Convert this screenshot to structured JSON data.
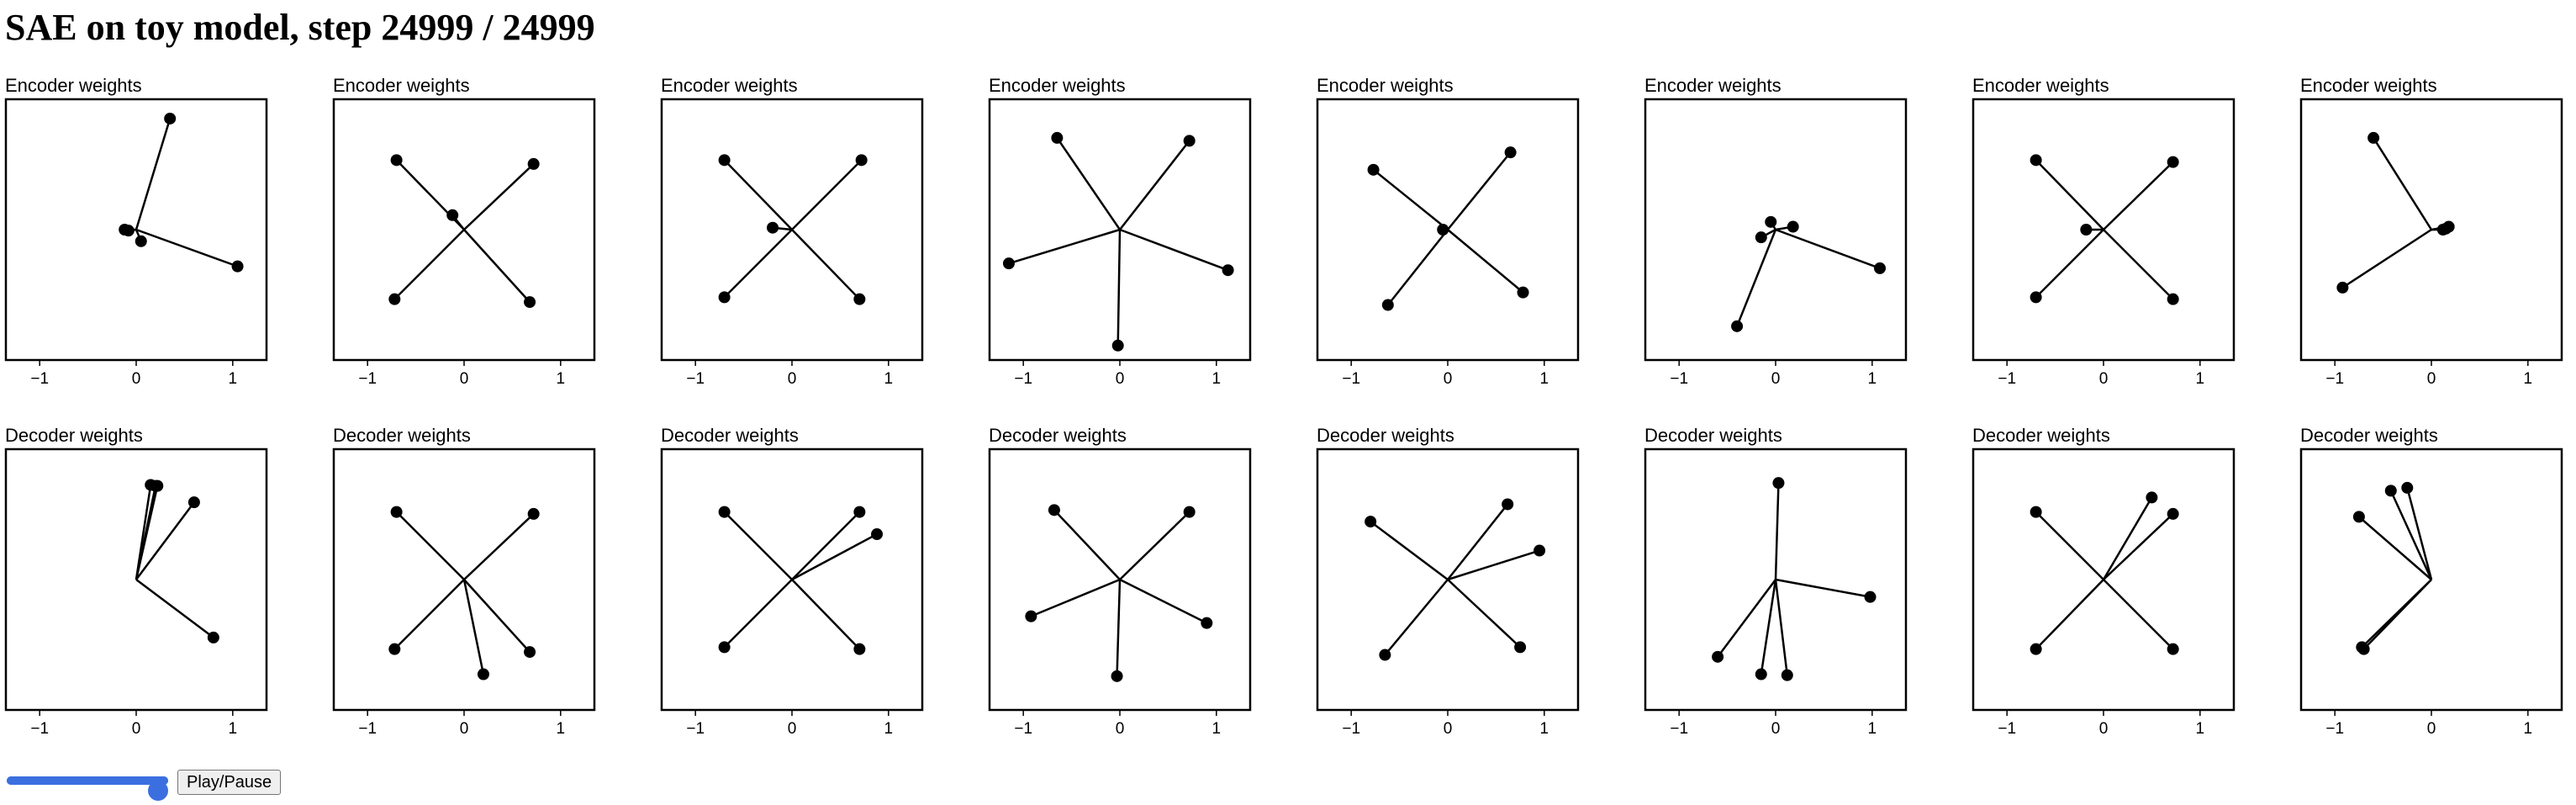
{
  "title": "SAE on toy model, step 24999 / 24999",
  "colors": {
    "marker": "#000000",
    "frame": "#000000",
    "slider": "#3b6fe0"
  },
  "controls": {
    "play_label": "Play/Pause",
    "slider_position": 1.0
  },
  "chart_data": [
    {
      "type": "scatter",
      "title": "Encoder weights",
      "xlim": [
        -1.35,
        1.35
      ],
      "ylim": [
        -1.35,
        1.35
      ],
      "xticks": [
        "−1",
        "0",
        "1"
      ],
      "grid": false,
      "points": [
        [
          0.35,
          1.15
        ],
        [
          -0.12,
          0.0
        ],
        [
          -0.08,
          -0.01
        ],
        [
          0.05,
          -0.12
        ],
        [
          1.05,
          -0.38
        ]
      ]
    },
    {
      "type": "scatter",
      "title": "Encoder weights",
      "xlim": [
        -1.35,
        1.35
      ],
      "ylim": [
        -1.35,
        1.35
      ],
      "xticks": [
        "−1",
        "0",
        "1"
      ],
      "grid": false,
      "points": [
        [
          -0.7,
          0.72
        ],
        [
          0.72,
          0.68
        ],
        [
          -0.72,
          -0.72
        ],
        [
          0.68,
          -0.75
        ],
        [
          -0.12,
          0.15
        ]
      ]
    },
    {
      "type": "scatter",
      "title": "Encoder weights",
      "xlim": [
        -1.35,
        1.35
      ],
      "ylim": [
        -1.35,
        1.35
      ],
      "xticks": [
        "−1",
        "0",
        "1"
      ],
      "grid": false,
      "points": [
        [
          -0.7,
          0.72
        ],
        [
          0.72,
          0.72
        ],
        [
          -0.7,
          -0.7
        ],
        [
          0.7,
          -0.72
        ],
        [
          -0.2,
          0.02
        ]
      ]
    },
    {
      "type": "scatter",
      "title": "Encoder weights",
      "xlim": [
        -1.35,
        1.35
      ],
      "ylim": [
        -1.35,
        1.35
      ],
      "xticks": [
        "−1",
        "0",
        "1"
      ],
      "grid": false,
      "points": [
        [
          -0.65,
          0.95
        ],
        [
          0.72,
          0.92
        ],
        [
          -1.15,
          -0.35
        ],
        [
          1.12,
          -0.42
        ],
        [
          -0.02,
          -1.2
        ]
      ]
    },
    {
      "type": "scatter",
      "title": "Encoder weights",
      "xlim": [
        -1.35,
        1.35
      ],
      "ylim": [
        -1.35,
        1.35
      ],
      "xticks": [
        "−1",
        "0",
        "1"
      ],
      "grid": false,
      "points": [
        [
          -0.77,
          0.62
        ],
        [
          0.65,
          0.8
        ],
        [
          -0.62,
          -0.78
        ],
        [
          0.78,
          -0.65
        ],
        [
          -0.05,
          0.0
        ]
      ]
    },
    {
      "type": "scatter",
      "title": "Encoder weights",
      "xlim": [
        -1.35,
        1.35
      ],
      "ylim": [
        -1.35,
        1.35
      ],
      "xticks": [
        "−1",
        "0",
        "1"
      ],
      "grid": false,
      "points": [
        [
          -0.05,
          0.08
        ],
        [
          0.18,
          0.03
        ],
        [
          -0.15,
          -0.08
        ],
        [
          1.08,
          -0.4
        ],
        [
          -0.4,
          -1.0
        ]
      ]
    },
    {
      "type": "scatter",
      "title": "Encoder weights",
      "xlim": [
        -1.35,
        1.35
      ],
      "ylim": [
        -1.35,
        1.35
      ],
      "xticks": [
        "−1",
        "0",
        "1"
      ],
      "grid": false,
      "points": [
        [
          -0.7,
          0.72
        ],
        [
          0.72,
          0.7
        ],
        [
          -0.7,
          -0.7
        ],
        [
          0.72,
          -0.72
        ],
        [
          -0.18,
          0.0
        ]
      ]
    },
    {
      "type": "scatter",
      "title": "Encoder weights",
      "xlim": [
        -1.35,
        1.35
      ],
      "ylim": [
        -1.35,
        1.35
      ],
      "xticks": [
        "−1",
        "0",
        "1"
      ],
      "grid": false,
      "points": [
        [
          -0.6,
          0.95
        ],
        [
          0.18,
          0.03
        ],
        [
          0.12,
          0.0
        ],
        [
          -0.92,
          -0.6
        ],
        [
          0.15,
          0.01
        ]
      ]
    },
    {
      "type": "scatter",
      "title": "Decoder weights",
      "xlim": [
        -1.35,
        1.35
      ],
      "ylim": [
        -1.35,
        1.35
      ],
      "xticks": [
        "−1",
        "0",
        "1"
      ],
      "grid": false,
      "points": [
        [
          0.15,
          0.98
        ],
        [
          0.22,
          0.97
        ],
        [
          0.6,
          0.8
        ],
        [
          0.8,
          -0.6
        ],
        [
          0.2,
          0.97
        ]
      ]
    },
    {
      "type": "scatter",
      "title": "Decoder weights",
      "xlim": [
        -1.35,
        1.35
      ],
      "ylim": [
        -1.35,
        1.35
      ],
      "xticks": [
        "−1",
        "0",
        "1"
      ],
      "grid": false,
      "points": [
        [
          -0.7,
          0.7
        ],
        [
          0.72,
          0.68
        ],
        [
          -0.72,
          -0.72
        ],
        [
          0.68,
          -0.75
        ],
        [
          0.2,
          -0.98
        ]
      ]
    },
    {
      "type": "scatter",
      "title": "Decoder weights",
      "xlim": [
        -1.35,
        1.35
      ],
      "ylim": [
        -1.35,
        1.35
      ],
      "xticks": [
        "−1",
        "0",
        "1"
      ],
      "grid": false,
      "points": [
        [
          -0.7,
          0.7
        ],
        [
          0.7,
          0.7
        ],
        [
          -0.7,
          -0.7
        ],
        [
          0.7,
          -0.72
        ],
        [
          0.88,
          0.47
        ]
      ]
    },
    {
      "type": "scatter",
      "title": "Decoder weights",
      "xlim": [
        -1.35,
        1.35
      ],
      "ylim": [
        -1.35,
        1.35
      ],
      "xticks": [
        "−1",
        "0",
        "1"
      ],
      "grid": false,
      "points": [
        [
          -0.68,
          0.72
        ],
        [
          0.72,
          0.7
        ],
        [
          -0.92,
          -0.38
        ],
        [
          0.9,
          -0.45
        ],
        [
          -0.03,
          -1.0
        ]
      ]
    },
    {
      "type": "scatter",
      "title": "Decoder weights",
      "xlim": [
        -1.35,
        1.35
      ],
      "ylim": [
        -1.35,
        1.35
      ],
      "xticks": [
        "−1",
        "0",
        "1"
      ],
      "grid": false,
      "points": [
        [
          -0.8,
          0.6
        ],
        [
          0.62,
          0.78
        ],
        [
          -0.65,
          -0.78
        ],
        [
          0.75,
          -0.7
        ],
        [
          0.95,
          0.3
        ]
      ]
    },
    {
      "type": "scatter",
      "title": "Decoder weights",
      "xlim": [
        -1.35,
        1.35
      ],
      "ylim": [
        -1.35,
        1.35
      ],
      "xticks": [
        "−1",
        "0",
        "1"
      ],
      "grid": false,
      "points": [
        [
          0.03,
          1.0
        ],
        [
          0.98,
          -0.18
        ],
        [
          -0.6,
          -0.8
        ],
        [
          -0.15,
          -0.98
        ],
        [
          0.12,
          -0.99
        ]
      ]
    },
    {
      "type": "scatter",
      "title": "Decoder weights",
      "xlim": [
        -1.35,
        1.35
      ],
      "ylim": [
        -1.35,
        1.35
      ],
      "xticks": [
        "−1",
        "0",
        "1"
      ],
      "grid": false,
      "points": [
        [
          -0.7,
          0.7
        ],
        [
          0.72,
          0.68
        ],
        [
          -0.7,
          -0.72
        ],
        [
          0.72,
          -0.72
        ],
        [
          0.5,
          0.85
        ]
      ]
    },
    {
      "type": "scatter",
      "title": "Decoder weights",
      "xlim": [
        -1.35,
        1.35
      ],
      "ylim": [
        -1.35,
        1.35
      ],
      "xticks": [
        "−1",
        "0",
        "1"
      ],
      "grid": false,
      "points": [
        [
          -0.25,
          0.95
        ],
        [
          -0.42,
          0.92
        ],
        [
          -0.75,
          0.65
        ],
        [
          -0.7,
          -0.72
        ],
        [
          -0.72,
          -0.7
        ]
      ]
    }
  ]
}
